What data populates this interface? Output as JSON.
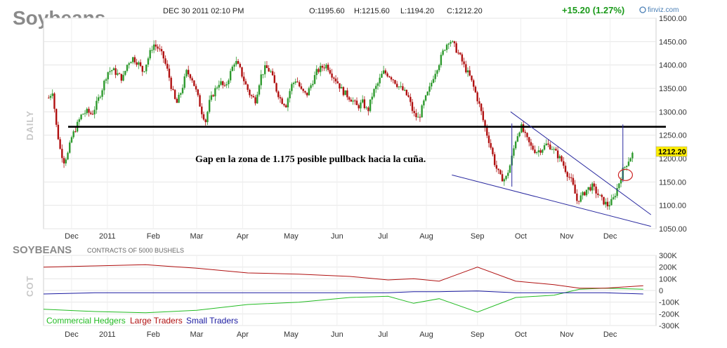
{
  "header": {
    "title": "Soybeans",
    "datetime": "DEC 30 2011 02:10 PM",
    "open": "O:1195.60",
    "high": "H:1215.60",
    "low": "L:1194.20",
    "close": "C:1212.20",
    "change": "+15.20 (1.27%)",
    "brand": "finviz.com"
  },
  "cot_panel": {
    "title": "SOYBEANS",
    "subtitle": "CONTRACTS OF 5000 BUSHELS",
    "side_label": "COT"
  },
  "colors": {
    "up": "#2e9a2e",
    "down": "#b01010",
    "commercial": "#22bb22",
    "large": "#b01010",
    "small": "#1a1aa0",
    "support": "#000000",
    "wedge": "#2a2aa0",
    "circle": "#cc2222"
  },
  "chart_data": [
    {
      "type": "candlestick",
      "side_label": "DAILY",
      "annotation": "Gap en la zona de 1.175 posible pullback hacia la cuña.",
      "last_price_label": "1212.20",
      "ylim": [
        1050,
        1500
      ],
      "y_ticks": [
        "1500.00",
        "1450.00",
        "1400.00",
        "1350.00",
        "1300.00",
        "1250.00",
        "1200.00",
        "1150.00",
        "1100.00",
        "1050.00"
      ],
      "x_labels": [
        "Dec",
        "2011",
        "Feb",
        "Mar",
        "Apr",
        "May",
        "Jun",
        "Jul",
        "Aug",
        "Sep",
        "Oct",
        "Nov",
        "Dec"
      ],
      "x_label_positions": [
        0.11,
        0.25,
        0.43,
        0.6,
        0.78,
        0.97,
        1.15,
        1.33,
        1.5,
        1.7,
        1.87,
        2.05,
        2.22
      ],
      "price_path": [
        [
          0.02,
          1330
        ],
        [
          0.035,
          1345
        ],
        [
          0.05,
          1270
        ],
        [
          0.065,
          1220
        ],
        [
          0.08,
          1195
        ],
        [
          0.095,
          1210
        ],
        [
          0.11,
          1245
        ],
        [
          0.13,
          1270
        ],
        [
          0.15,
          1295
        ],
        [
          0.17,
          1300
        ],
        [
          0.19,
          1295
        ],
        [
          0.21,
          1320
        ],
        [
          0.23,
          1350
        ],
        [
          0.25,
          1385
        ],
        [
          0.27,
          1390
        ],
        [
          0.29,
          1380
        ],
        [
          0.31,
          1370
        ],
        [
          0.33,
          1405
        ],
        [
          0.35,
          1415
        ],
        [
          0.37,
          1405
        ],
        [
          0.39,
          1385
        ],
        [
          0.41,
          1415
        ],
        [
          0.43,
          1445
        ],
        [
          0.45,
          1435
        ],
        [
          0.47,
          1415
        ],
        [
          0.49,
          1380
        ],
        [
          0.5,
          1355
        ],
        [
          0.52,
          1315
        ],
        [
          0.54,
          1345
        ],
        [
          0.56,
          1385
        ],
        [
          0.58,
          1375
        ],
        [
          0.6,
          1340
        ],
        [
          0.62,
          1300
        ],
        [
          0.635,
          1280
        ],
        [
          0.65,
          1320
        ],
        [
          0.67,
          1345
        ],
        [
          0.69,
          1365
        ],
        [
          0.71,
          1350
        ],
        [
          0.73,
          1380
        ],
        [
          0.75,
          1410
        ],
        [
          0.77,
          1390
        ],
        [
          0.79,
          1360
        ],
        [
          0.81,
          1335
        ],
        [
          0.83,
          1325
        ],
        [
          0.85,
          1375
        ],
        [
          0.87,
          1395
        ],
        [
          0.89,
          1385
        ],
        [
          0.91,
          1350
        ],
        [
          0.93,
          1325
        ],
        [
          0.95,
          1315
        ],
        [
          0.97,
          1355
        ],
        [
          0.99,
          1370
        ],
        [
          1.01,
          1345
        ],
        [
          1.03,
          1335
        ],
        [
          1.05,
          1360
        ],
        [
          1.07,
          1385
        ],
        [
          1.09,
          1395
        ],
        [
          1.11,
          1400
        ],
        [
          1.13,
          1380
        ],
        [
          1.15,
          1365
        ],
        [
          1.17,
          1345
        ],
        [
          1.19,
          1335
        ],
        [
          1.21,
          1325
        ],
        [
          1.23,
          1310
        ],
        [
          1.25,
          1320
        ],
        [
          1.27,
          1300
        ],
        [
          1.29,
          1340
        ],
        [
          1.31,
          1360
        ],
        [
          1.33,
          1385
        ],
        [
          1.35,
          1380
        ],
        [
          1.37,
          1370
        ],
        [
          1.39,
          1355
        ],
        [
          1.41,
          1345
        ],
        [
          1.43,
          1330
        ],
        [
          1.45,
          1295
        ],
        [
          1.47,
          1285
        ],
        [
          1.49,
          1320
        ],
        [
          1.51,
          1345
        ],
        [
          1.53,
          1380
        ],
        [
          1.55,
          1405
        ],
        [
          1.57,
          1435
        ],
        [
          1.59,
          1455
        ],
        [
          1.61,
          1440
        ],
        [
          1.63,
          1420
        ],
        [
          1.65,
          1395
        ],
        [
          1.67,
          1375
        ],
        [
          1.69,
          1345
        ],
        [
          1.71,
          1310
        ],
        [
          1.73,
          1265
        ],
        [
          1.75,
          1230
        ],
        [
          1.77,
          1185
        ],
        [
          1.79,
          1160
        ],
        [
          1.81,
          1155
        ],
        [
          1.83,
          1190
        ],
        [
          1.85,
          1240
        ],
        [
          1.87,
          1270
        ],
        [
          1.89,
          1245
        ],
        [
          1.91,
          1225
        ],
        [
          1.93,
          1215
        ],
        [
          1.95,
          1220
        ],
        [
          1.97,
          1230
        ],
        [
          1.99,
          1225
        ],
        [
          2.01,
          1210
        ],
        [
          2.03,
          1195
        ],
        [
          2.05,
          1170
        ],
        [
          2.07,
          1150
        ],
        [
          2.09,
          1110
        ],
        [
          2.11,
          1120
        ],
        [
          2.13,
          1135
        ],
        [
          2.15,
          1140
        ],
        [
          2.17,
          1125
        ],
        [
          2.19,
          1110
        ],
        [
          2.21,
          1100
        ],
        [
          2.23,
          1110
        ],
        [
          2.25,
          1140
        ],
        [
          2.27,
          1175
        ],
        [
          2.29,
          1195
        ],
        [
          2.31,
          1212
        ]
      ],
      "support_level": 1268,
      "wedge_upper": [
        [
          1.83,
          1300
        ],
        [
          2.38,
          1080
        ]
      ],
      "wedge_lower": [
        [
          1.6,
          1165
        ],
        [
          2.38,
          1055
        ]
      ],
      "spikes": [
        [
          1.835,
          1140,
          1275
        ],
        [
          2.27,
          1150,
          1273
        ]
      ],
      "circle_center": [
        2.28,
        1150
      ]
    },
    {
      "type": "line",
      "ylim": [
        -300000,
        300000
      ],
      "y_ticks": [
        "300K",
        "200K",
        "100K",
        "0",
        "-100K",
        "-200K",
        "-300K"
      ],
      "x_labels": [
        "Dec",
        "2011",
        "Feb",
        "Mar",
        "Apr",
        "May",
        "Jun",
        "Jul",
        "Aug",
        "Sep",
        "Oct",
        "Nov",
        "Dec"
      ],
      "series": [
        {
          "name": "Commercial Hedgers",
          "points": [
            [
              0,
              -160000
            ],
            [
              0.2,
              -180000
            ],
            [
              0.4,
              -190000
            ],
            [
              0.6,
              -170000
            ],
            [
              0.8,
              -120000
            ],
            [
              1.0,
              -100000
            ],
            [
              1.2,
              -60000
            ],
            [
              1.35,
              -50000
            ],
            [
              1.45,
              -110000
            ],
            [
              1.55,
              -70000
            ],
            [
              1.7,
              -185000
            ],
            [
              1.85,
              -60000
            ],
            [
              2.0,
              -40000
            ],
            [
              2.1,
              10000
            ],
            [
              2.2,
              20000
            ],
            [
              2.35,
              10000
            ]
          ]
        },
        {
          "name": "Large Traders",
          "points": [
            [
              0,
              200000
            ],
            [
              0.2,
              210000
            ],
            [
              0.4,
              220000
            ],
            [
              0.6,
              190000
            ],
            [
              0.8,
              150000
            ],
            [
              1.0,
              140000
            ],
            [
              1.2,
              120000
            ],
            [
              1.35,
              90000
            ],
            [
              1.45,
              100000
            ],
            [
              1.55,
              80000
            ],
            [
              1.7,
              200000
            ],
            [
              1.85,
              80000
            ],
            [
              2.0,
              50000
            ],
            [
              2.1,
              20000
            ],
            [
              2.2,
              20000
            ],
            [
              2.35,
              40000
            ]
          ]
        },
        {
          "name": "Small Traders",
          "points": [
            [
              0,
              -30000
            ],
            [
              0.2,
              -20000
            ],
            [
              0.4,
              -20000
            ],
            [
              0.6,
              -20000
            ],
            [
              0.8,
              -20000
            ],
            [
              1.0,
              -20000
            ],
            [
              1.2,
              -20000
            ],
            [
              1.35,
              -20000
            ],
            [
              1.45,
              -10000
            ],
            [
              1.55,
              -10000
            ],
            [
              1.7,
              -5000
            ],
            [
              1.85,
              -20000
            ],
            [
              2.0,
              -20000
            ],
            [
              2.1,
              -20000
            ],
            [
              2.2,
              -20000
            ],
            [
              2.35,
              -30000
            ]
          ]
        }
      ]
    }
  ]
}
